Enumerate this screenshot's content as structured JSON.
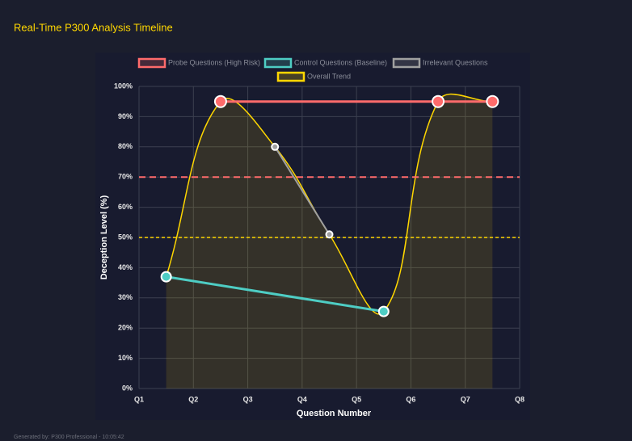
{
  "chart_data": {
    "type": "line",
    "title": "Real-Time P300 Analysis Timeline",
    "x_label": "Question Number",
    "y_label": "Deception Level (%)",
    "footer": "Generated by: P300 Professional - 10:05:42",
    "xlim": [
      1,
      8
    ],
    "xticks": [
      {
        "value": 1,
        "label": "Q1"
      },
      {
        "value": 2,
        "label": "Q2"
      },
      {
        "value": 3,
        "label": "Q3"
      },
      {
        "value": 4,
        "label": "Q4"
      },
      {
        "value": 5,
        "label": "Q5"
      },
      {
        "value": 6,
        "label": "Q6"
      },
      {
        "value": 7,
        "label": "Q7"
      },
      {
        "value": 8,
        "label": "Q8"
      }
    ],
    "ylim": [
      0,
      100
    ],
    "yticks": [
      {
        "value": 0,
        "label": "0%"
      },
      {
        "value": 10,
        "label": "10%"
      },
      {
        "value": 20,
        "label": "20%"
      },
      {
        "value": 30,
        "label": "30%"
      },
      {
        "value": 40,
        "label": "40%"
      },
      {
        "value": 50,
        "label": "50%"
      },
      {
        "value": 60,
        "label": "60%"
      },
      {
        "value": 70,
        "label": "70%"
      },
      {
        "value": 80,
        "label": "80%"
      },
      {
        "value": 90,
        "label": "90%"
      },
      {
        "value": 100,
        "label": "100%"
      }
    ],
    "grid": true,
    "legend": "top",
    "thresholds": [
      {
        "value": 70,
        "color": "#ff6b6b"
      },
      {
        "value": 50,
        "color": "#ffd700"
      }
    ],
    "series": [
      {
        "name": "Probe Questions (High Risk)",
        "color": "#ff6b6b",
        "x": [
          2.5,
          6.5,
          7.5
        ],
        "values": [
          95,
          95,
          95
        ]
      },
      {
        "name": "Control Questions (Baseline)",
        "color": "#4ecdc4",
        "x": [
          1.5,
          5.5
        ],
        "values": [
          37,
          25.5
        ]
      },
      {
        "name": "Irrelevant Questions",
        "color": "#a0a0a0",
        "x": [
          3.5,
          4.5
        ],
        "values": [
          80,
          51
        ]
      },
      {
        "name": "Overall Trend",
        "color": "#ffd700",
        "smooth": true,
        "fill": true,
        "x": [
          1.5,
          2.5,
          3.5,
          4.5,
          5.5,
          6.5,
          7.5
        ],
        "values": [
          37,
          95,
          80,
          51,
          25.5,
          95,
          95
        ]
      }
    ]
  }
}
